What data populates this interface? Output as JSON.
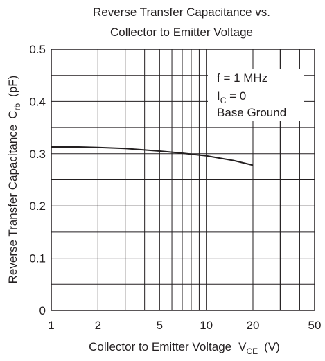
{
  "chart_data": {
    "type": "line",
    "title_line1": "Reverse Transfer Capacitance vs.",
    "title_line2": "Collector to Emitter Voltage",
    "xlabel": "Collector to Emitter Voltage",
    "xlabel_symbol": "V",
    "xlabel_sub": "CE",
    "xlabel_unit": "(V)",
    "ylabel": "Reverse Transfer Capacitance",
    "ylabel_symbol": "C",
    "ylabel_sub": "rb",
    "ylabel_unit": "(pF)",
    "x_scale": "log",
    "xlim": [
      1,
      50
    ],
    "ylim": [
      0,
      0.5
    ],
    "grid": true,
    "x_ticks": [
      {
        "value": 1,
        "label": "1"
      },
      {
        "value": 2,
        "label": "2"
      },
      {
        "value": 5,
        "label": "5"
      },
      {
        "value": 10,
        "label": "10"
      },
      {
        "value": 20,
        "label": "20"
      },
      {
        "value": 50,
        "label": "50"
      }
    ],
    "y_ticks": [
      {
        "value": 0,
        "label": "0"
      },
      {
        "value": 0.1,
        "label": "0.1"
      },
      {
        "value": 0.2,
        "label": "0.2"
      },
      {
        "value": 0.3,
        "label": "0.3"
      },
      {
        "value": 0.4,
        "label": "0.4"
      },
      {
        "value": 0.5,
        "label": "0.5"
      }
    ],
    "annotations": {
      "freq": "f = 1 MHz",
      "ic_symbol": "I",
      "ic_sub": "C",
      "ic_value": " = 0",
      "base": "Base Ground"
    },
    "series": [
      {
        "x": [
          1,
          1.5,
          2,
          3,
          5,
          7,
          10,
          15,
          20
        ],
        "y": [
          0.313,
          0.313,
          0.312,
          0.31,
          0.305,
          0.301,
          0.296,
          0.287,
          0.278
        ]
      }
    ]
  }
}
